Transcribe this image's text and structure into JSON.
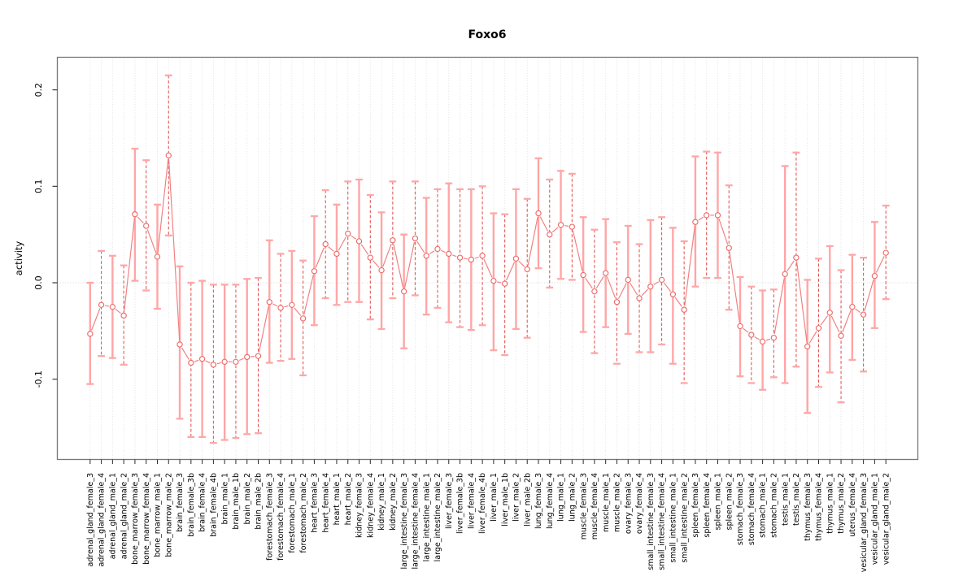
{
  "chart_data": {
    "type": "line",
    "error_bars": true,
    "title": "Foxo6",
    "xlabel": "",
    "ylabel": "activity",
    "ylim": [
      -0.184,
      0.233
    ],
    "yticks": [
      -0.1,
      0.0,
      0.1,
      0.2
    ],
    "ytick_labels": [
      "-0.1",
      "0.0",
      "0.1",
      "0.2"
    ],
    "grid": "dotted vertical line per category; dotted horizontal line at y=0",
    "legend": "none",
    "categories": [
      "adrenal_gland_female_3",
      "adrenal_gland_female_4",
      "adrenal_gland_male_1",
      "adrenal_gland_male_2",
      "bone_marrow_female_3",
      "bone_marrow_female_4",
      "bone_marrow_male_1",
      "bone_marrow_male_2",
      "brain_female_3",
      "brain_female_3b",
      "brain_female_4",
      "brain_female_4b",
      "brain_male_1",
      "brain_male_1b",
      "brain_male_2",
      "brain_male_2b",
      "forestomach_female_3",
      "forestomach_female_4",
      "forestomach_male_1",
      "forestomach_male_2",
      "heart_female_3",
      "heart_female_4",
      "heart_male_1",
      "heart_male_2",
      "kidney_female_3",
      "kidney_female_4",
      "kidney_male_1",
      "kidney_male_2",
      "large_intestine_female_3",
      "large_intestine_female_4",
      "large_intestine_male_1",
      "large_intestine_male_2",
      "liver_female_3",
      "liver_female_3b",
      "liver_female_4",
      "liver_female_4b",
      "liver_male_1",
      "liver_male_1b",
      "liver_male_2",
      "liver_male_2b",
      "lung_female_3",
      "lung_female_4",
      "lung_male_1",
      "lung_male_2",
      "muscle_female_3",
      "muscle_female_4",
      "muscle_male_1",
      "muscle_male_2",
      "ovary_female_3",
      "ovary_female_4",
      "small_intestine_female_3",
      "small_intestine_female_4",
      "small_intestine_male_1",
      "small_intestine_male_2",
      "spleen_female_3",
      "spleen_female_4",
      "spleen_male_1",
      "spleen_male_2",
      "stomach_female_3",
      "stomach_female_4",
      "stomach_male_1",
      "stomach_male_2",
      "testis_male_1",
      "testis_male_2",
      "thymus_female_3",
      "thymus_female_4",
      "thymus_male_1",
      "thymus_male_2",
      "uterus_female_4",
      "vesicular_gland_female_3",
      "vesicular_gland_male_1",
      "vesicular_gland_male_2"
    ],
    "series": [
      {
        "name": "activity",
        "values": [
          -0.053,
          -0.023,
          -0.025,
          -0.034,
          0.071,
          0.059,
          0.027,
          0.132,
          -0.064,
          -0.083,
          -0.079,
          -0.085,
          -0.082,
          -0.082,
          -0.077,
          -0.076,
          -0.02,
          -0.026,
          -0.023,
          -0.037,
          0.012,
          0.04,
          0.03,
          0.051,
          0.043,
          0.026,
          0.013,
          0.044,
          -0.009,
          0.046,
          0.028,
          0.035,
          0.03,
          0.026,
          0.024,
          0.028,
          0.002,
          -0.001,
          0.025,
          0.014,
          0.072,
          0.05,
          0.06,
          0.058,
          0.008,
          -0.009,
          0.01,
          -0.02,
          0.003,
          -0.016,
          -0.004,
          0.003,
          -0.012,
          -0.028,
          0.063,
          0.07,
          0.07,
          0.036,
          -0.045,
          -0.054,
          -0.061,
          -0.057,
          0.009,
          0.026,
          -0.066,
          -0.047,
          -0.031,
          -0.055,
          -0.025,
          -0.033,
          0.007,
          0.031
        ],
        "err_hi": [
          0.0,
          0.033,
          0.028,
          0.018,
          0.139,
          0.127,
          0.081,
          0.215,
          0.017,
          0.0,
          0.002,
          -0.002,
          -0.002,
          -0.002,
          0.004,
          0.005,
          0.044,
          0.03,
          0.033,
          0.023,
          0.069,
          0.096,
          0.081,
          0.105,
          0.107,
          0.091,
          0.073,
          0.105,
          0.05,
          0.105,
          0.088,
          0.097,
          0.103,
          0.097,
          0.097,
          0.1,
          0.072,
          0.071,
          0.097,
          0.087,
          0.129,
          0.107,
          0.116,
          0.113,
          0.068,
          0.055,
          0.066,
          0.042,
          0.059,
          0.04,
          0.065,
          0.068,
          0.057,
          0.043,
          0.131,
          0.136,
          0.135,
          0.101,
          0.006,
          -0.004,
          -0.008,
          -0.007,
          0.121,
          0.135,
          0.003,
          0.025,
          0.038,
          0.013,
          0.029,
          0.026,
          0.063,
          0.08
        ],
        "err_lo": [
          -0.105,
          -0.076,
          -0.078,
          -0.085,
          0.002,
          -0.008,
          -0.027,
          0.049,
          -0.141,
          -0.16,
          -0.16,
          -0.166,
          -0.163,
          -0.161,
          -0.157,
          -0.156,
          -0.083,
          -0.081,
          -0.079,
          -0.096,
          -0.044,
          -0.016,
          -0.023,
          -0.02,
          -0.02,
          -0.038,
          -0.048,
          -0.016,
          -0.068,
          -0.013,
          -0.033,
          -0.026,
          -0.041,
          -0.046,
          -0.049,
          -0.044,
          -0.07,
          -0.075,
          -0.048,
          -0.057,
          0.015,
          -0.005,
          0.004,
          0.003,
          -0.051,
          -0.073,
          -0.046,
          -0.084,
          -0.053,
          -0.072,
          -0.072,
          -0.064,
          -0.084,
          -0.104,
          -0.004,
          0.005,
          0.005,
          -0.028,
          -0.097,
          -0.104,
          -0.111,
          -0.098,
          -0.104,
          -0.087,
          -0.135,
          -0.108,
          -0.093,
          -0.124,
          -0.08,
          -0.092,
          -0.047,
          -0.017
        ]
      }
    ],
    "colors": {
      "series_line": "#F07E7E",
      "marker_stroke": "#EE6A6A",
      "marker_fill": "#FFFFFF",
      "errorbar_solid": "#FFA6A6",
      "errorbar_dashed": "#E5504F",
      "errorbar_cap": "#FFA6A6",
      "gridline": "#DEDEDE",
      "zero_line": "#D8D8D8",
      "frame": "#777777",
      "tick": "#2A2A2A",
      "text": "#000000"
    }
  }
}
